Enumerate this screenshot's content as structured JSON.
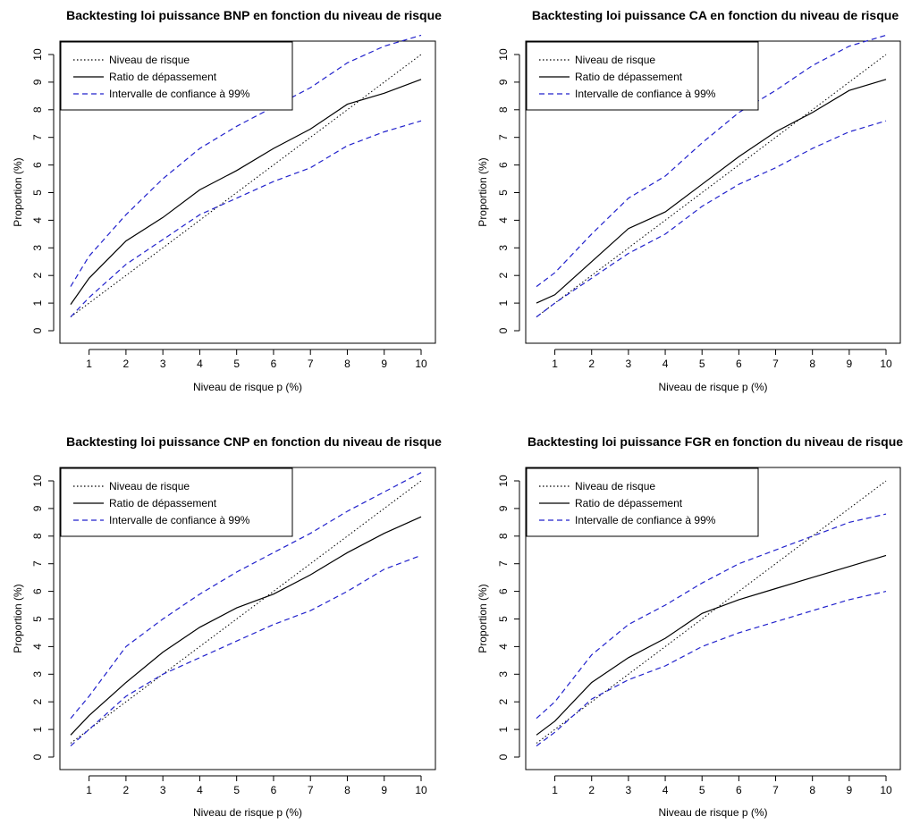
{
  "figure": {
    "background": "#ffffff",
    "series_colors": {
      "Niveau de risque": "#000000",
      "Ratio de dépassement": "#000000",
      "Intervalle de confiance à 99%": "#2222cc"
    }
  },
  "chart_data": [
    {
      "type": "line",
      "title": "Backtesting loi puissance BNP en fonction du niveau de risque",
      "xlabel": "Niveau de risque p (%)",
      "ylabel": "Proportion (%)",
      "xlim": [
        0.5,
        10
      ],
      "ylim": [
        0,
        10
      ],
      "xticks": [
        1,
        2,
        3,
        4,
        5,
        6,
        7,
        8,
        9,
        10
      ],
      "yticks": [
        0,
        1,
        2,
        3,
        4,
        5,
        6,
        7,
        8,
        9,
        10
      ],
      "legend_position": "top-left",
      "legend": [
        "Niveau de risque",
        "Ratio de dépassement",
        "Intervalle de confiance à 99%"
      ],
      "x": [
        0.5,
        1,
        2,
        3,
        4,
        5,
        6,
        7,
        8,
        9,
        10
      ],
      "series": [
        {
          "name": "Niveau de risque",
          "style": "dotted",
          "values": [
            0.5,
            1,
            2,
            3,
            4,
            5,
            6,
            7,
            8,
            9,
            10
          ]
        },
        {
          "name": "Ratio de dépassement",
          "style": "solid",
          "values": [
            0.95,
            1.9,
            3.25,
            4.1,
            5.1,
            5.8,
            6.6,
            7.3,
            8.2,
            8.6,
            9.1
          ]
        },
        {
          "name": "Intervalle de confiance à 99%",
          "style": "dashed",
          "values": [
            1.6,
            2.7,
            4.2,
            5.5,
            6.6,
            7.4,
            8.1,
            8.8,
            9.7,
            10.3,
            10.7
          ]
        },
        {
          "name": "Intervalle de confiance à 99%",
          "style": "dashed",
          "values": [
            0.5,
            1.2,
            2.4,
            3.3,
            4.2,
            4.8,
            5.4,
            5.9,
            6.7,
            7.2,
            7.6
          ]
        }
      ]
    },
    {
      "type": "line",
      "title": "Backtesting loi puissance CA en fonction du niveau de risque",
      "xlabel": "Niveau de risque p (%)",
      "ylabel": "Proportion (%)",
      "xlim": [
        0.5,
        10
      ],
      "ylim": [
        0,
        10
      ],
      "xticks": [
        1,
        2,
        3,
        4,
        5,
        6,
        7,
        8,
        9,
        10
      ],
      "yticks": [
        0,
        1,
        2,
        3,
        4,
        5,
        6,
        7,
        8,
        9,
        10
      ],
      "legend_position": "top-left",
      "legend": [
        "Niveau de risque",
        "Ratio de dépassement",
        "Intervalle de confiance à 99%"
      ],
      "x": [
        0.5,
        1,
        2,
        3,
        4,
        5,
        6,
        7,
        8,
        9,
        10
      ],
      "series": [
        {
          "name": "Niveau de risque",
          "style": "dotted",
          "values": [
            0.5,
            1,
            2,
            3,
            4,
            5,
            6,
            7,
            8,
            9,
            10
          ]
        },
        {
          "name": "Ratio de dépassement",
          "style": "solid",
          "values": [
            1.0,
            1.3,
            2.5,
            3.7,
            4.3,
            5.3,
            6.3,
            7.2,
            7.9,
            8.7,
            9.1
          ]
        },
        {
          "name": "Intervalle de confiance à 99%",
          "style": "dashed",
          "values": [
            1.6,
            2.1,
            3.5,
            4.8,
            5.6,
            6.8,
            7.9,
            8.7,
            9.6,
            10.3,
            10.7
          ]
        },
        {
          "name": "Intervalle de confiance à 99%",
          "style": "dashed",
          "values": [
            0.5,
            1.0,
            1.9,
            2.8,
            3.5,
            4.5,
            5.3,
            5.9,
            6.6,
            7.2,
            7.6
          ]
        }
      ]
    },
    {
      "type": "line",
      "title": "Backtesting loi puissance CNP en fonction du niveau de risque",
      "xlabel": "Niveau de risque p (%)",
      "ylabel": "Proportion (%)",
      "xlim": [
        0.5,
        10
      ],
      "ylim": [
        0,
        10
      ],
      "xticks": [
        1,
        2,
        3,
        4,
        5,
        6,
        7,
        8,
        9,
        10
      ],
      "yticks": [
        0,
        1,
        2,
        3,
        4,
        5,
        6,
        7,
        8,
        9,
        10
      ],
      "legend_position": "top-left",
      "legend": [
        "Niveau de risque",
        "Ratio de dépassement",
        "Intervalle de confiance à 99%"
      ],
      "x": [
        0.5,
        1,
        2,
        3,
        4,
        5,
        6,
        7,
        8,
        9,
        10
      ],
      "series": [
        {
          "name": "Niveau de risque",
          "style": "dotted",
          "values": [
            0.5,
            1,
            2,
            3,
            4,
            5,
            6,
            7,
            8,
            9,
            10
          ]
        },
        {
          "name": "Ratio de dépassement",
          "style": "solid",
          "values": [
            0.8,
            1.5,
            2.7,
            3.8,
            4.7,
            5.4,
            5.9,
            6.6,
            7.4,
            8.1,
            8.7
          ]
        },
        {
          "name": "Intervalle de confiance à 99%",
          "style": "dashed",
          "values": [
            1.4,
            2.2,
            4.0,
            5.0,
            5.9,
            6.7,
            7.4,
            8.1,
            8.9,
            9.6,
            10.3
          ]
        },
        {
          "name": "Intervalle de confiance à 99%",
          "style": "dashed",
          "values": [
            0.4,
            1.0,
            2.2,
            3.0,
            3.6,
            4.2,
            4.8,
            5.3,
            6.0,
            6.8,
            7.3
          ]
        }
      ]
    },
    {
      "type": "line",
      "title": "Backtesting loi puissance FGR en fonction du niveau de risque",
      "xlabel": "Niveau de risque p (%)",
      "ylabel": "Proportion (%)",
      "xlim": [
        0.5,
        10
      ],
      "ylim": [
        0,
        10
      ],
      "xticks": [
        1,
        2,
        3,
        4,
        5,
        6,
        7,
        8,
        9,
        10
      ],
      "yticks": [
        0,
        1,
        2,
        3,
        4,
        5,
        6,
        7,
        8,
        9,
        10
      ],
      "legend_position": "top-left",
      "legend": [
        "Niveau de risque",
        "Ratio de dépassement",
        "Intervalle de confiance à 99%"
      ],
      "x": [
        0.5,
        1,
        2,
        3,
        4,
        5,
        6,
        7,
        8,
        9,
        10
      ],
      "series": [
        {
          "name": "Niveau de risque",
          "style": "dotted",
          "values": [
            0.5,
            1,
            2,
            3,
            4,
            5,
            6,
            7,
            8,
            9,
            10
          ]
        },
        {
          "name": "Ratio de dépassement",
          "style": "solid",
          "values": [
            0.8,
            1.3,
            2.7,
            3.6,
            4.3,
            5.2,
            5.7,
            6.1,
            6.5,
            6.9,
            7.3
          ]
        },
        {
          "name": "Intervalle de confiance à 99%",
          "style": "dashed",
          "values": [
            1.4,
            2.0,
            3.7,
            4.8,
            5.5,
            6.3,
            7.0,
            7.5,
            8.0,
            8.5,
            8.8
          ]
        },
        {
          "name": "Intervalle de confiance à 99%",
          "style": "dashed",
          "values": [
            0.4,
            0.9,
            2.1,
            2.8,
            3.3,
            4.0,
            4.5,
            4.9,
            5.3,
            5.7,
            6.0
          ]
        }
      ]
    }
  ]
}
